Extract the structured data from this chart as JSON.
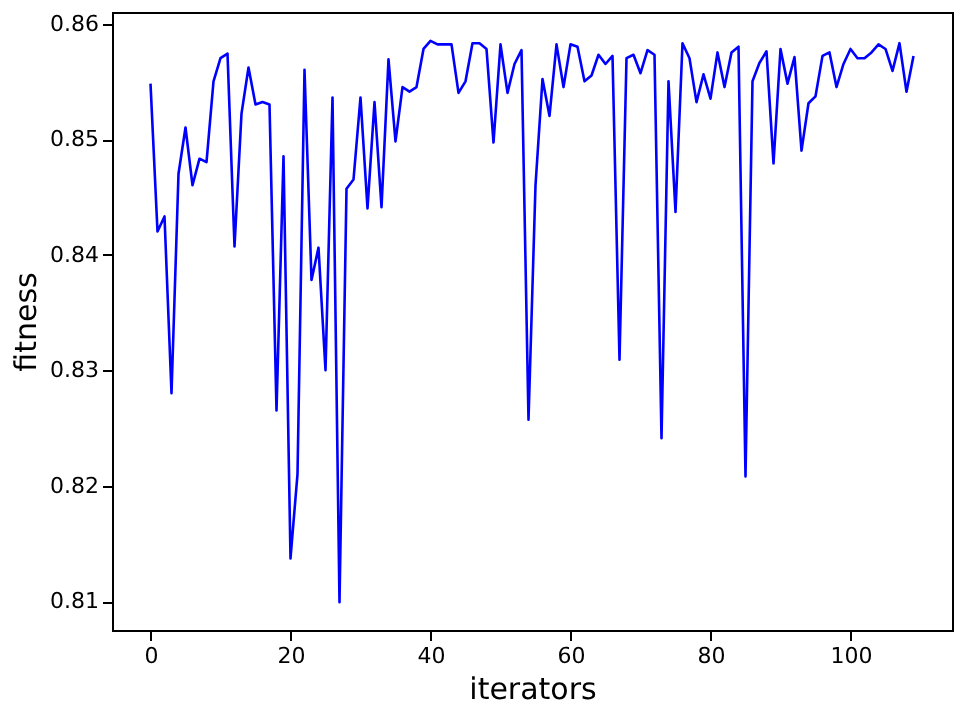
{
  "chart_data": {
    "type": "line",
    "xlabel": "iterators",
    "ylabel": "fitness",
    "x": [
      0,
      1,
      2,
      3,
      4,
      5,
      6,
      7,
      8,
      9,
      10,
      11,
      12,
      13,
      14,
      15,
      16,
      17,
      18,
      19,
      20,
      21,
      22,
      23,
      24,
      25,
      26,
      27,
      28,
      29,
      30,
      31,
      32,
      33,
      34,
      35,
      36,
      37,
      38,
      39,
      40,
      41,
      42,
      43,
      44,
      45,
      46,
      47,
      48,
      49,
      50,
      51,
      52,
      53,
      54,
      55,
      56,
      57,
      58,
      59,
      60,
      61,
      62,
      63,
      64,
      65,
      66,
      67,
      68,
      69,
      70,
      71,
      72,
      73,
      74,
      75,
      76,
      77,
      78,
      79,
      80,
      81,
      82,
      83,
      84,
      85,
      86,
      87,
      88,
      89,
      90,
      91,
      92,
      93,
      94,
      95,
      96,
      97,
      98,
      99,
      100,
      101,
      102,
      103,
      104,
      105,
      106,
      107,
      108,
      109
    ],
    "series": [
      {
        "color": "#0000ff",
        "values": [
          0.8548,
          0.842,
          0.8433,
          0.828,
          0.847,
          0.851,
          0.846,
          0.8483,
          0.848,
          0.855,
          0.857,
          0.8574,
          0.8407,
          0.8522,
          0.8562,
          0.853,
          0.8532,
          0.853,
          0.8265,
          0.8485,
          0.8137,
          0.821,
          0.856,
          0.8378,
          0.8406,
          0.83,
          0.8536,
          0.8099,
          0.8457,
          0.8465,
          0.8536,
          0.844,
          0.8532,
          0.8441,
          0.8569,
          0.8498,
          0.8545,
          0.8541,
          0.8545,
          0.8578,
          0.8585,
          0.8582,
          0.8582,
          0.8582,
          0.854,
          0.855,
          0.8583,
          0.8583,
          0.8578,
          0.8497,
          0.8582,
          0.854,
          0.8565,
          0.8577,
          0.8257,
          0.846,
          0.8552,
          0.852,
          0.8582,
          0.8545,
          0.8582,
          0.858,
          0.855,
          0.8555,
          0.8573,
          0.8565,
          0.8572,
          0.8309,
          0.857,
          0.8573,
          0.8557,
          0.8577,
          0.8573,
          0.8241,
          0.855,
          0.8437,
          0.8583,
          0.857,
          0.8532,
          0.8556,
          0.8535,
          0.8575,
          0.8545,
          0.8575,
          0.858,
          0.8208,
          0.855,
          0.8566,
          0.8576,
          0.8479,
          0.8578,
          0.8548,
          0.8571,
          0.849,
          0.8531,
          0.8537,
          0.8572,
          0.8575,
          0.8545,
          0.8565,
          0.8578,
          0.857,
          0.857,
          0.8575,
          0.8582,
          0.8578,
          0.8559,
          0.8583,
          0.8541,
          0.8572
        ]
      }
    ],
    "xlim": [
      -5.5,
      114.5
    ],
    "ylim": [
      0.8075,
      0.861
    ],
    "xticks": [
      0,
      20,
      40,
      60,
      80,
      100
    ],
    "yticks": [
      0.81,
      0.82,
      0.83,
      0.84,
      0.85,
      0.86
    ],
    "grid": false,
    "marker": "none",
    "line_style": "solid"
  }
}
